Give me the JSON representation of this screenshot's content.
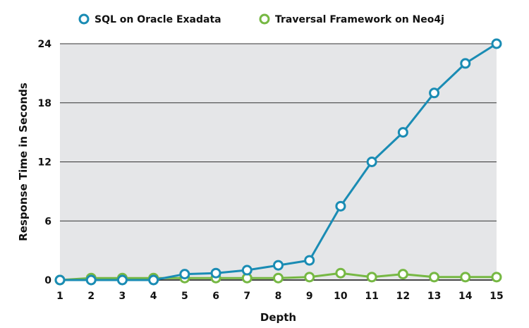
{
  "chart_data": {
    "type": "line",
    "title": "",
    "xlabel": "Depth",
    "ylabel": "Response Time in Seconds",
    "x": [
      1,
      2,
      3,
      4,
      5,
      6,
      7,
      8,
      9,
      10,
      11,
      12,
      13,
      14,
      15
    ],
    "ylim": [
      0,
      24
    ],
    "yticks": [
      0,
      6,
      12,
      18,
      24
    ],
    "grid": true,
    "legend_position": "top",
    "series": [
      {
        "name": "SQL on Oracle Exadata",
        "color": "#1a8cb4",
        "values": [
          0,
          0,
          0,
          0,
          0.6,
          0.7,
          1.0,
          1.5,
          2.0,
          7.5,
          12.0,
          15.0,
          19.0,
          22.0,
          24.0
        ]
      },
      {
        "name": "Traversal Framework on Neo4j",
        "color": "#76b843",
        "values": [
          0,
          0.2,
          0.2,
          0.2,
          0.2,
          0.2,
          0.2,
          0.2,
          0.3,
          0.7,
          0.3,
          0.6,
          0.3,
          0.3,
          0.3
        ]
      }
    ],
    "plot_background": "#e5e6e8",
    "gridline_color": "#333333"
  }
}
